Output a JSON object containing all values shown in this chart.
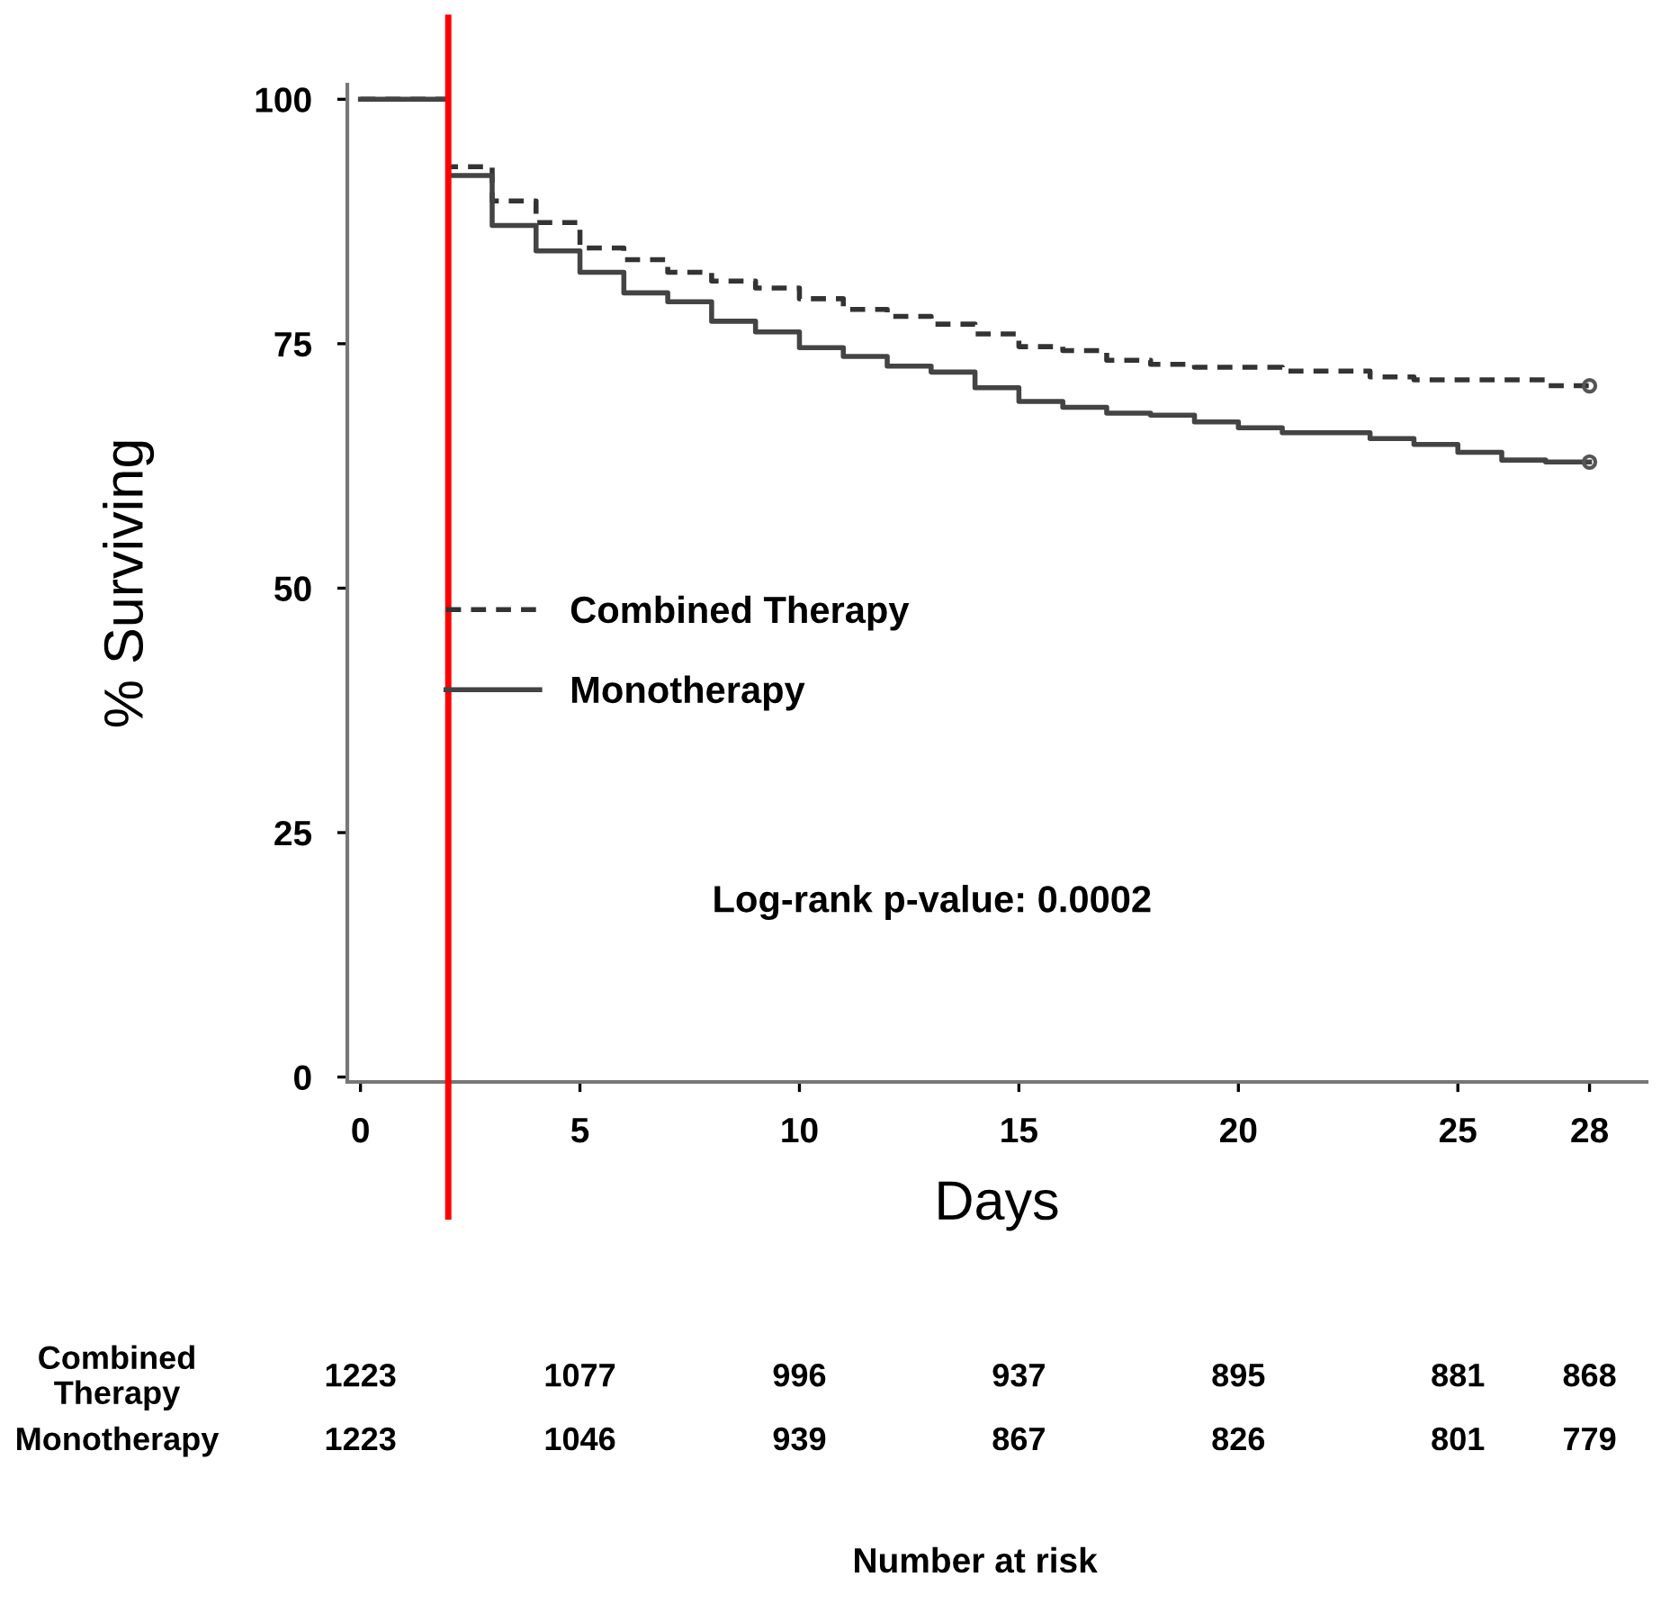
{
  "chart_data": [
    {
      "type": "step",
      "xlabel": "Days",
      "ylabel": "% Surviving",
      "xlim": [
        -0.3,
        29.3
      ],
      "ylim": [
        -0.5,
        101.5
      ],
      "xticks": [
        0,
        5,
        10,
        15,
        20,
        25,
        28
      ],
      "yticks": [
        0,
        25,
        50,
        75,
        100
      ],
      "legend": "left",
      "annotations": [
        "Log-rank p-value: 0.0002"
      ],
      "ref_lines": [
        {
          "axis": "x",
          "value": 2,
          "color": "#ff0000",
          "line_style": "solid"
        }
      ],
      "series": [
        {
          "name": "Combined Therapy",
          "color": "#333333",
          "line_style": "dashed",
          "marker": "none",
          "x": [
            0,
            2,
            3,
            4,
            5,
            6,
            7,
            8,
            9,
            10,
            11,
            12,
            13,
            14,
            15,
            16,
            17,
            18,
            19,
            21,
            23,
            24,
            27,
            28
          ],
          "values": [
            100,
            93.1,
            89.6,
            87.4,
            84.8,
            83.6,
            82.3,
            81.4,
            80.7,
            79.6,
            78.5,
            77.8,
            77.0,
            76.0,
            74.7,
            74.3,
            73.3,
            72.9,
            72.6,
            72.2,
            71.6,
            71.3,
            70.7,
            70.7
          ]
        },
        {
          "name": "Monotherapy",
          "color": "#444444",
          "line_style": "solid",
          "marker": "none",
          "x": [
            0,
            2,
            3,
            4,
            5,
            6,
            7,
            8,
            9,
            10,
            11,
            12,
            13,
            14,
            15,
            16,
            17,
            18,
            19,
            20,
            21,
            23,
            24,
            25,
            26,
            27,
            28
          ],
          "values": [
            100,
            92.2,
            87.1,
            84.5,
            82.3,
            80.2,
            79.3,
            77.3,
            76.2,
            74.6,
            73.7,
            72.7,
            72.1,
            70.5,
            69.1,
            68.5,
            67.9,
            67.7,
            67.0,
            66.4,
            65.9,
            65.3,
            64.7,
            63.9,
            63.1,
            62.9,
            62.9
          ]
        },
        {
          "type": "scatter",
          "color": "#555555",
          "marker": "circle",
          "x": [
            28
          ],
          "values": [
            70.7
          ]
        },
        {
          "type": "scatter",
          "color": "#555555",
          "marker": "circle",
          "x": [
            28
          ],
          "values": [
            62.9
          ]
        }
      ]
    },
    {
      "type": "other",
      "title": "Number at risk",
      "y_categories": [
        "Combined\nTherapy",
        "Monotherapy"
      ],
      "cell_labels": [
        [
          "1223",
          "1077",
          "996",
          "937",
          "895",
          "881",
          "868"
        ],
        [
          "1223",
          "1046",
          "939",
          "867",
          "826",
          "801",
          "779"
        ]
      ]
    }
  ]
}
